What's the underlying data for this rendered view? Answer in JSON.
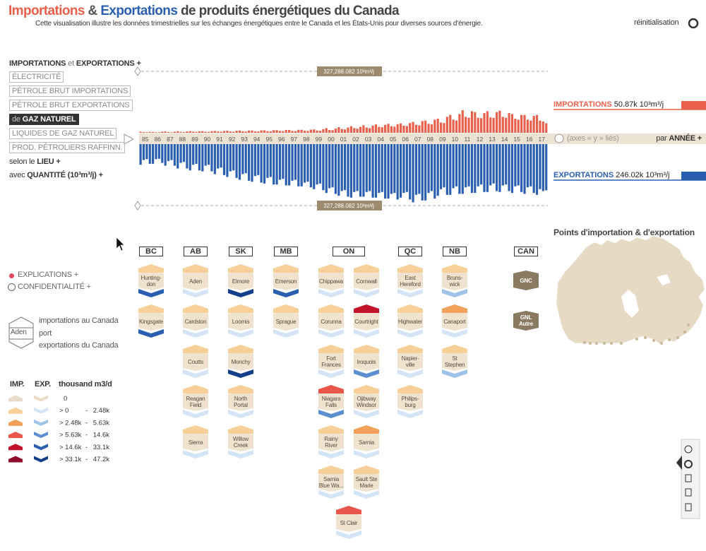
{
  "header": {
    "title_imports": "Importations",
    "title_amp": "&",
    "title_exports": "Exportations",
    "title_rest": "de produits énergétiques du Canada",
    "subtitle": "Cette visualisation illustre les données trimestrielles sur les échanges énergétiques entre le Canada et les États-Unis pour diverses sources d'énergie.",
    "reset": "réinitialisation"
  },
  "menu": {
    "heading": [
      "IMPORTATIONS",
      "et",
      "EXPORTATIONS",
      "+"
    ],
    "sources": [
      "ÉLECTRICITÉ",
      "PÉTROLE BRUT IMPORTATIONS",
      "PÉTROLE BRUT EXPORTATIONS",
      "GAZ NATUREL",
      "LIQUIDES DE GAZ NATUREL",
      "PROD. PÉTROLIERS RAFFINN."
    ],
    "selected_prefix": "de",
    "selected": 3,
    "place": [
      "selon le",
      "LIEU",
      "+"
    ],
    "quantity": [
      "avec",
      "QUANTITÉ (10³m³/j)",
      "+"
    ]
  },
  "chart_data": {
    "type": "bar",
    "categories": [
      "85",
      null,
      null,
      null,
      "86",
      null,
      null,
      null,
      "87",
      null,
      null,
      null,
      "88",
      null,
      null,
      null,
      "89",
      null,
      null,
      null,
      "90",
      null,
      null,
      null,
      "91",
      null,
      null,
      null,
      "92",
      null,
      null,
      null,
      "93",
      null,
      null,
      null,
      "94",
      null,
      null,
      null,
      "95",
      null,
      null,
      null,
      "96",
      null,
      null,
      null,
      "97",
      null,
      null,
      null,
      "98",
      null,
      null,
      null,
      "99",
      null,
      null,
      null,
      "00",
      null,
      null,
      null,
      "01",
      null,
      null,
      null,
      "02",
      null,
      null,
      null,
      "03",
      null,
      null,
      null,
      "04",
      null,
      null,
      null,
      "05",
      null,
      null,
      null,
      "06",
      null,
      null,
      null,
      "07",
      null,
      null,
      null,
      "08",
      null,
      null,
      null,
      "09",
      null,
      null,
      null,
      "10",
      null,
      null,
      null,
      "11",
      null,
      null,
      null,
      "12",
      null,
      null,
      null,
      "13",
      null,
      null,
      null,
      "14",
      null,
      null,
      null,
      "15",
      null,
      null,
      null,
      "16",
      null,
      null,
      null,
      "17",
      null,
      null,
      null
    ],
    "series": [
      {
        "name": "IMPORTATIONS",
        "color": "#e8604c",
        "total_label": "50.87k 10³m³/j",
        "values": [
          6000,
          4000,
          3000,
          5000,
          5000,
          3000,
          3000,
          6000,
          7000,
          4000,
          3000,
          6000,
          8000,
          5000,
          4000,
          7000,
          9000,
          6000,
          5000,
          8000,
          9000,
          6000,
          5000,
          9000,
          10000,
          7000,
          6000,
          10000,
          11000,
          7000,
          6000,
          11000,
          12000,
          8000,
          7000,
          12000,
          12000,
          8000,
          7000,
          13000,
          13000,
          9000,
          8000,
          14000,
          14000,
          10000,
          9000,
          15000,
          15000,
          10000,
          9000,
          16000,
          16000,
          11000,
          10000,
          17000,
          18000,
          12000,
          11000,
          19000,
          25000,
          15000,
          14000,
          22000,
          30000,
          20000,
          18000,
          28000,
          35000,
          25000,
          22000,
          32000,
          40000,
          28000,
          25000,
          38000,
          45000,
          32000,
          30000,
          42000,
          48000,
          35000,
          33000,
          46000,
          50000,
          38000,
          36000,
          52000,
          58000,
          42000,
          40000,
          62000,
          65000,
          48000,
          45000,
          70000,
          75000,
          55000,
          52000,
          85000,
          95000,
          70000,
          65000,
          100000,
          120000,
          85000,
          80000,
          115000,
          110000,
          80000,
          78000,
          105000,
          115000,
          82000,
          80000,
          110000,
          118000,
          85000,
          80000,
          105000,
          100000,
          75000,
          70000,
          95000,
          95000,
          70000,
          65000,
          90000,
          95000,
          65000,
          60000,
          50870
        ]
      },
      {
        "name": "EXPORTATIONS",
        "color": "#2a5eb0",
        "total_label": "246.02k 10³m³/j",
        "values": [
          110000,
          85000,
          80000,
          105000,
          105000,
          80000,
          78000,
          100000,
          115000,
          90000,
          85000,
          115000,
          130000,
          100000,
          95000,
          130000,
          140000,
          110000,
          105000,
          140000,
          145000,
          115000,
          110000,
          145000,
          160000,
          130000,
          125000,
          165000,
          175000,
          145000,
          140000,
          180000,
          190000,
          160000,
          155000,
          195000,
          200000,
          170000,
          165000,
          205000,
          210000,
          180000,
          175000,
          215000,
          215000,
          190000,
          185000,
          220000,
          220000,
          195000,
          190000,
          225000,
          225000,
          205000,
          200000,
          230000,
          240000,
          215000,
          210000,
          245000,
          260000,
          235000,
          230000,
          265000,
          275000,
          250000,
          245000,
          280000,
          285000,
          255000,
          250000,
          280000,
          280000,
          255000,
          250000,
          285000,
          285000,
          260000,
          255000,
          290000,
          290000,
          265000,
          260000,
          295000,
          285000,
          260000,
          255000,
          295000,
          310000,
          270000,
          265000,
          300000,
          300000,
          260000,
          250000,
          290000,
          275000,
          240000,
          230000,
          270000,
          270000,
          235000,
          225000,
          265000,
          265000,
          230000,
          225000,
          260000,
          260000,
          225000,
          215000,
          255000,
          255000,
          220000,
          210000,
          250000,
          255000,
          220000,
          215000,
          250000,
          260000,
          225000,
          220000,
          255000,
          265000,
          230000,
          225000,
          260000,
          270000,
          240000,
          250000,
          246020
        ]
      }
    ],
    "ylim": [
      0,
      327288.082
    ],
    "yticks": [
      {
        "value": 327288.082,
        "label": "327,288.082 10³m³/j"
      },
      {
        "value": 327288.082,
        "label": "327,288.082 10³m³/j"
      }
    ],
    "axis_note": "(axes « y » liés)",
    "period": [
      "par",
      "ANNÉE",
      "+"
    ]
  },
  "map": {
    "title": "Points d'importation & d'exportation"
  },
  "side": {
    "explications": [
      "EXPLICATIONS",
      "+"
    ],
    "confidentialite": [
      "CONFIDENTIALITÉ",
      "+"
    ]
  },
  "port_key": {
    "port_name": "Aden",
    "imports": "importations au Canada",
    "port": "port",
    "exports": "exportations du Canada"
  },
  "scale_legend": {
    "imp": "IMP.",
    "exp": "EXP.",
    "unit": "thousand m3/d",
    "rows": [
      {
        "imp_color": "#e8dcc8",
        "exp_color": "#e8dcc8",
        "from": "0"
      },
      {
        "imp_color": "#f7cf98",
        "exp_color": "#d3e4f4",
        "from": "> 0",
        "sep": "-",
        "to": "2.48k"
      },
      {
        "imp_color": "#f2a05a",
        "exp_color": "#9fc3e6",
        "from": "> 2.48k",
        "sep": "-",
        "to": "5.63k"
      },
      {
        "imp_color": "#e8554a",
        "exp_color": "#5b8fd0",
        "from": "> 5.63k",
        "sep": "-",
        "to": "14.6k"
      },
      {
        "imp_color": "#c3132b",
        "exp_color": "#2a5eb0",
        "from": "> 14.6k",
        "sep": "-",
        "to": "33.1k"
      },
      {
        "imp_color": "#8e0c2a",
        "exp_color": "#123e8a",
        "from": "> 33.1k",
        "sep": "-",
        "to": "47.2k"
      }
    ]
  },
  "provinces": [
    {
      "name": "BC",
      "ports": [
        {
          "name": "Hunting-\ndon",
          "imp": 1,
          "exp": 4
        },
        {
          "name": "Kingsgate",
          "imp": 1,
          "exp": 4
        }
      ]
    },
    {
      "name": "AB",
      "ports": [
        {
          "name": "Aden",
          "imp": 1,
          "exp": 1
        },
        {
          "name": "Cardston",
          "imp": 1,
          "exp": 1
        },
        {
          "name": "Coutts",
          "imp": 1,
          "exp": 1
        },
        {
          "name": "Reagan\nField",
          "imp": 1,
          "exp": 1
        },
        {
          "name": "Sierra",
          "imp": 1,
          "exp": 1
        }
      ]
    },
    {
      "name": "SK",
      "ports": [
        {
          "name": "Elmore",
          "imp": 1,
          "exp": 5
        },
        {
          "name": "Loomis",
          "imp": 1,
          "exp": 1
        },
        {
          "name": "Monchy",
          "imp": 1,
          "exp": 5
        },
        {
          "name": "North\nPortal",
          "imp": 1,
          "exp": 1
        },
        {
          "name": "Willow\nCreek",
          "imp": 1,
          "exp": 1
        }
      ]
    },
    {
      "name": "MB",
      "ports": [
        {
          "name": "Emerson",
          "imp": 1,
          "exp": 4
        },
        {
          "name": "Sprague",
          "imp": 1,
          "exp": 1
        }
      ]
    },
    {
      "name": "ON",
      "ports": [
        {
          "name": "Chippawa",
          "imp": 1,
          "exp": 1
        },
        {
          "name": "Cornwall",
          "imp": 1,
          "exp": 1
        },
        {
          "name": "Corunna",
          "imp": 1,
          "exp": 1
        },
        {
          "name": "Courtright",
          "imp": 4,
          "exp": 1
        },
        {
          "name": "Fort\nFrances",
          "imp": 1,
          "exp": 1
        },
        {
          "name": "Iroquois",
          "imp": 1,
          "exp": 3
        },
        {
          "name": "Niagara\nFalls",
          "imp": 3,
          "exp": 3
        },
        {
          "name": "Ojibway\nWindsor",
          "imp": 1,
          "exp": 1
        },
        {
          "name": "Rainy\nRiver",
          "imp": 1,
          "exp": 1
        },
        {
          "name": "Sarnia",
          "imp": 2,
          "exp": 1
        },
        {
          "name": "Sarnia\nBlue Wa...",
          "imp": 1,
          "exp": 1
        },
        {
          "name": "Sault Ste\nMarie",
          "imp": 1,
          "exp": 1
        },
        {
          "name": "St Clair",
          "imp": 3,
          "exp": 1
        }
      ]
    },
    {
      "name": "QC",
      "ports": [
        {
          "name": "East\nHereford",
          "imp": 1,
          "exp": 1
        },
        {
          "name": "Highwater",
          "imp": 1,
          "exp": 1
        },
        {
          "name": "Napier-\nville",
          "imp": 1,
          "exp": 1
        },
        {
          "name": "Philips-\nburg",
          "imp": 1,
          "exp": 1
        }
      ]
    },
    {
      "name": "NB",
      "ports": [
        {
          "name": "Bruns-\nwick",
          "imp": 1,
          "exp": 2
        },
        {
          "name": "Canaport",
          "imp": 2,
          "exp": 1
        },
        {
          "name": "St\nStephen",
          "imp": 1,
          "exp": 2
        }
      ]
    },
    {
      "name": "CAN",
      "ports": [
        {
          "name": "GNC"
        },
        {
          "name": "GNL\nAutre"
        }
      ]
    }
  ]
}
